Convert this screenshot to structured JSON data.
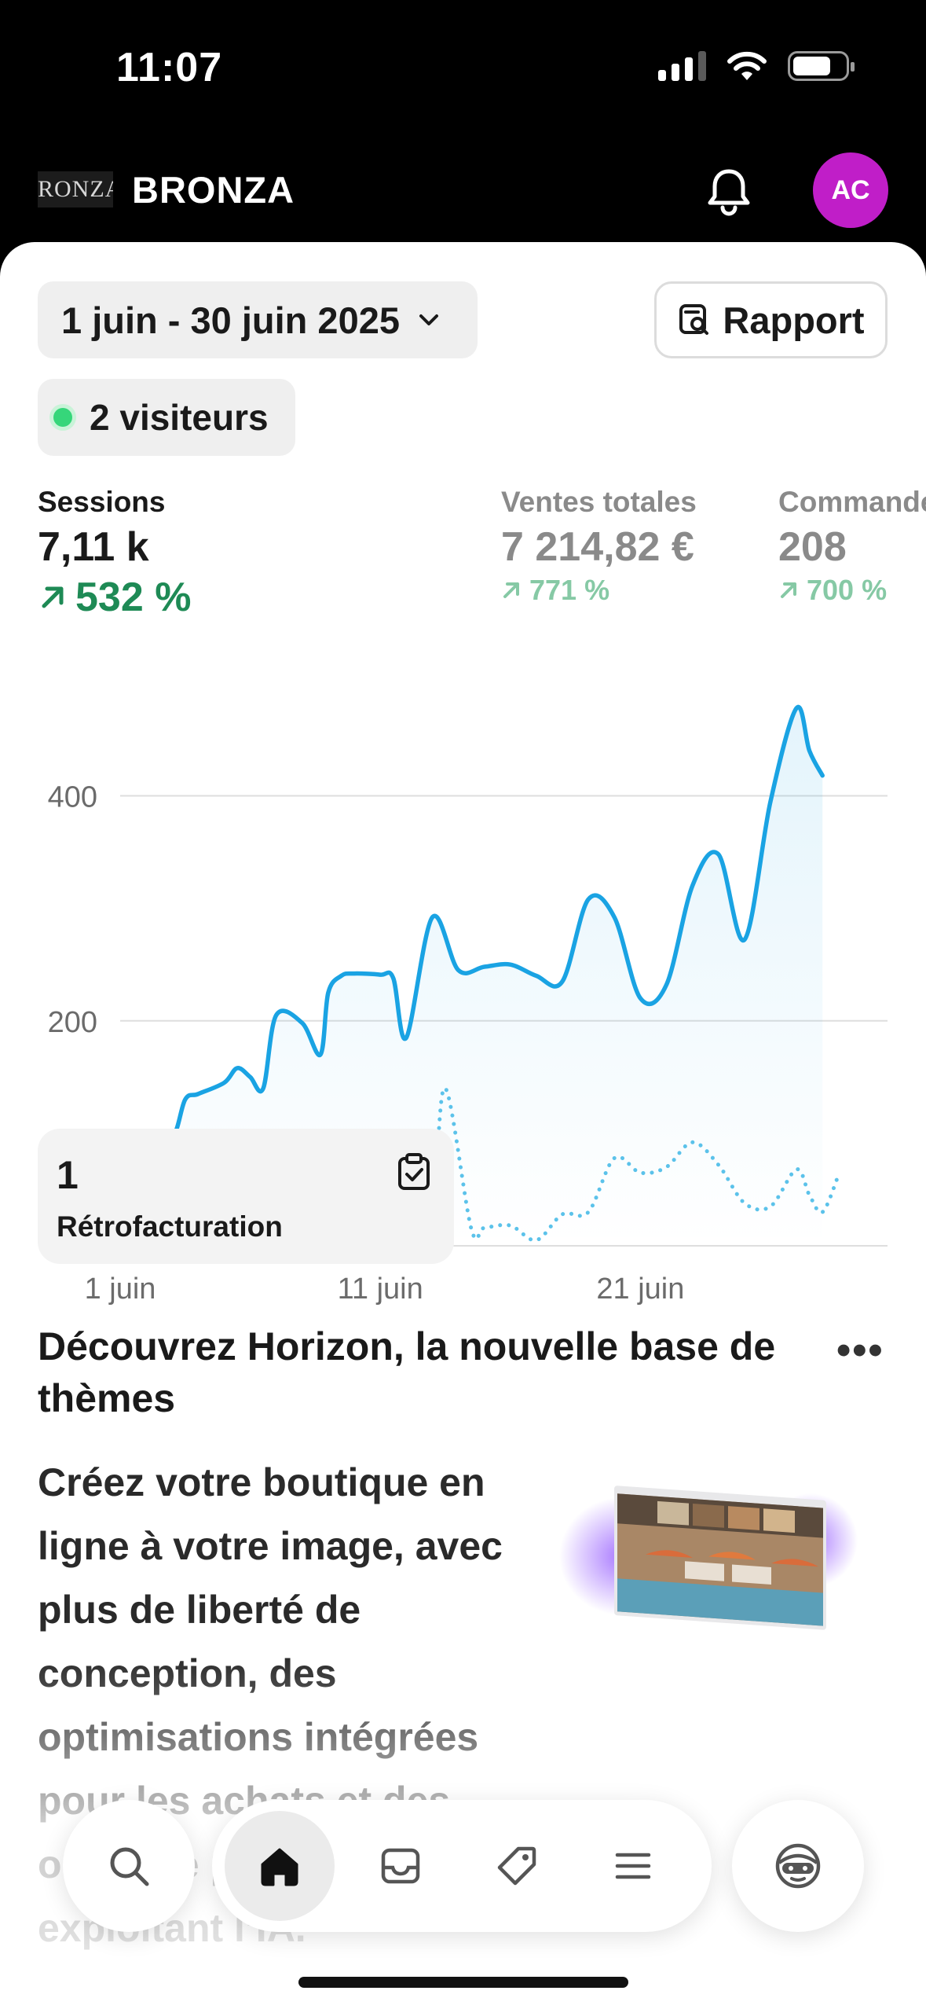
{
  "status_bar": {
    "time": "11:07"
  },
  "header": {
    "logo_text": "RONZA",
    "store_name": "BRONZA",
    "avatar_initials": "AC",
    "avatar_color": "#c01ec8"
  },
  "filters": {
    "date_range": "1 juin - 30 juin 2025",
    "report_label": "Rapport",
    "visitors_label": "2 visiteurs"
  },
  "metrics": [
    {
      "label": "Sessions",
      "value": "7,11 k",
      "delta": "532 %"
    },
    {
      "label": "Ventes totales",
      "value": "7 214,82 €",
      "delta": "771 %"
    },
    {
      "label": "Commandes",
      "value": "208",
      "delta": "700 %"
    }
  ],
  "chart_data": {
    "type": "line",
    "y_ticks": [
      "400",
      "200",
      "0"
    ],
    "ylim": [
      0,
      480
    ],
    "x_tick_labels": [
      "1 juin",
      "11 juin",
      "21 juin"
    ],
    "x_tick_days": [
      1,
      11,
      21
    ],
    "x_range": [
      1,
      30.5
    ],
    "grid": true,
    "series": [
      {
        "style": "solid",
        "color": "#1aa3e3",
        "points": [
          [
            1,
            94
          ],
          [
            2,
            93
          ],
          [
            3,
            96
          ],
          [
            3.5,
            130
          ],
          [
            4,
            135
          ],
          [
            5,
            145
          ],
          [
            5.5,
            158
          ],
          [
            6,
            150
          ],
          [
            6.5,
            140
          ],
          [
            7,
            205
          ],
          [
            8,
            198
          ],
          [
            8.7,
            170
          ],
          [
            9,
            225
          ],
          [
            9.5,
            240
          ],
          [
            10,
            242
          ],
          [
            11,
            241
          ],
          [
            11.5,
            238
          ],
          [
            12,
            185
          ],
          [
            13,
            292
          ],
          [
            14,
            245
          ],
          [
            15,
            248
          ],
          [
            16,
            250
          ],
          [
            17,
            240
          ],
          [
            18,
            235
          ],
          [
            19,
            308
          ],
          [
            20,
            292
          ],
          [
            21,
            220
          ],
          [
            22,
            232
          ],
          [
            23,
            320
          ],
          [
            24,
            348
          ],
          [
            25,
            272
          ],
          [
            26,
            395
          ],
          [
            27,
            478
          ],
          [
            27.5,
            440
          ],
          [
            28,
            418
          ]
        ]
      },
      {
        "style": "dotted",
        "color": "#5bc2ea",
        "points": [
          [
            1,
            8
          ],
          [
            2,
            5
          ],
          [
            3,
            3
          ],
          [
            5,
            8
          ],
          [
            6,
            12
          ],
          [
            7,
            8
          ],
          [
            8,
            55
          ],
          [
            9,
            75
          ],
          [
            10,
            55
          ],
          [
            11,
            18
          ],
          [
            12,
            28
          ],
          [
            13,
            45
          ],
          [
            13.5,
            140
          ],
          [
            14.5,
            15
          ],
          [
            15,
            16
          ],
          [
            16,
            18
          ],
          [
            17,
            5
          ],
          [
            18,
            28
          ],
          [
            19,
            30
          ],
          [
            20,
            78
          ],
          [
            21,
            65
          ],
          [
            22,
            70
          ],
          [
            23,
            92
          ],
          [
            24,
            72
          ],
          [
            25,
            38
          ],
          [
            26,
            35
          ],
          [
            27,
            68
          ],
          [
            27.5,
            45
          ],
          [
            28,
            30
          ],
          [
            28.6,
            62
          ]
        ]
      }
    ]
  },
  "chargeback": {
    "count": "1",
    "label": "Rétrofacturation"
  },
  "promo": {
    "title": "Découvrez Horizon, la nouvelle base de thèmes",
    "body": "Créez votre boutique en ligne à votre image, avec plus de liberté de conception, des optimisations intégrées pour les achats et des outils de personnalisation exploitant l’IA."
  },
  "nav": {
    "active": "home"
  }
}
